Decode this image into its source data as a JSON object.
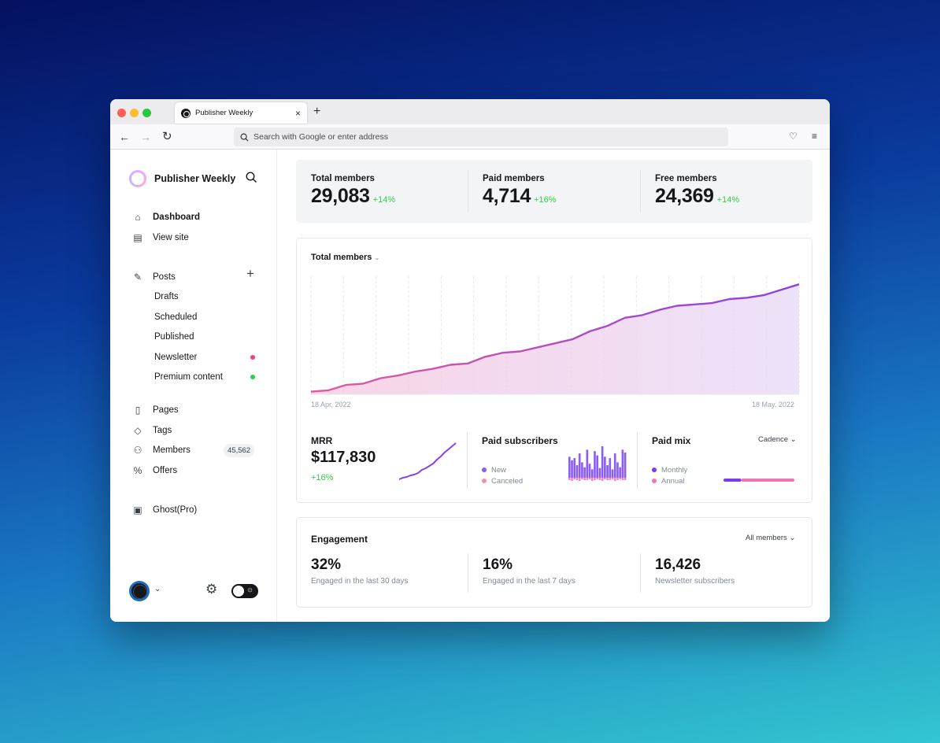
{
  "browser": {
    "tab_title": "Publisher Weekly",
    "close_glyph": "×",
    "newtab_glyph": "+",
    "address_placeholder": "Search with Google or enter address",
    "back_glyph": "←",
    "forward_glyph": "→",
    "reload_glyph": "↻",
    "pocket_glyph": "♡",
    "menu_glyph": "≡"
  },
  "sidebar": {
    "brand": "Publisher Weekly",
    "search_glyph": "⌕",
    "nav": [
      {
        "label": "Dashboard",
        "icon": "home-icon",
        "glyph": "⌂"
      },
      {
        "label": "View site",
        "icon": "layout-icon",
        "glyph": "▤"
      }
    ],
    "posts": {
      "label": "Posts",
      "icon": "edit-icon",
      "glyph": "✎",
      "add_glyph": "+"
    },
    "post_subitems": [
      {
        "label": "Drafts"
      },
      {
        "label": "Scheduled"
      },
      {
        "label": "Published"
      },
      {
        "label": "Newsletter",
        "dot_color": "#f0437a"
      },
      {
        "label": "Premium content",
        "dot_color": "#30cf43"
      }
    ],
    "manage": [
      {
        "label": "Pages",
        "icon": "page-icon",
        "glyph": "▯"
      },
      {
        "label": "Tags",
        "icon": "tag-icon",
        "glyph": "◇"
      },
      {
        "label": "Members",
        "icon": "users-icon",
        "glyph": "⚇",
        "badge": "45,562"
      },
      {
        "label": "Offers",
        "icon": "percent-icon",
        "glyph": "%"
      }
    ],
    "ghost_pro": {
      "label": "Ghost(Pro)",
      "icon": "ghost-pro-icon",
      "glyph": "▣"
    },
    "footer": {
      "caret_glyph": "⌄",
      "gear_glyph": "⚙",
      "sun_glyph": "☼"
    }
  },
  "stats": [
    {
      "label": "Total members",
      "value": "29,083",
      "delta": "+14%"
    },
    {
      "label": "Paid members",
      "value": "4,714",
      "delta": "+16%"
    },
    {
      "label": "Free members",
      "value": "24,369",
      "delta": "+14%"
    }
  ],
  "chart_data": [
    {
      "type": "area",
      "title": "Total members",
      "caret": "⌄",
      "x_start_label": "18 Apr, 2022",
      "x_end_label": "18 May, 2022",
      "values": [
        25000,
        25050,
        25250,
        25300,
        25500,
        25600,
        25750,
        25850,
        26000,
        26050,
        26300,
        26450,
        26500,
        26650,
        26800,
        26950,
        27250,
        27450,
        27750,
        27850,
        28050,
        28200,
        28250,
        28300,
        28450,
        28500,
        28600,
        28800,
        29000
      ],
      "ylim": [
        24900,
        29300
      ],
      "colors": {
        "line_start": "#e25a9a",
        "line_end": "#8b40e6"
      }
    },
    {
      "type": "line",
      "title": "MRR",
      "values": [
        2,
        4,
        5,
        7,
        8,
        10,
        14,
        16,
        19,
        22,
        27,
        31,
        36,
        40,
        44,
        48
      ],
      "color": "#8b40e6"
    },
    {
      "type": "bar",
      "title": "Paid subscribers",
      "series": [
        {
          "name": "New",
          "color": "#8b5cf6",
          "values": [
            30,
            25,
            28,
            18,
            35,
            22,
            15,
            40,
            20,
            12,
            38,
            32,
            14,
            45,
            30,
            18,
            28,
            12,
            35,
            22,
            15,
            40,
            36
          ]
        },
        {
          "name": "Canceled",
          "color": "#f38bb4",
          "values": [
            3,
            4,
            2,
            3,
            4,
            2,
            3,
            3,
            2,
            4,
            3,
            2,
            3,
            4,
            2,
            3,
            3,
            2,
            4,
            3,
            2,
            3,
            3
          ]
        }
      ]
    },
    {
      "type": "bar",
      "title": "Paid mix",
      "cadence_label": "Cadence",
      "series": [
        {
          "name": "Monthly",
          "color": "#7c3aed",
          "value": 25
        },
        {
          "name": "Annual",
          "color": "#f075b6",
          "value": 75
        }
      ]
    }
  ],
  "mrr": {
    "value": "$117,830",
    "delta": "+16%"
  },
  "engagement": {
    "title": "Engagement",
    "filter": "All members",
    "caret": "⌄",
    "stats": [
      {
        "value": "32%",
        "label": "Engaged in the last 30 days"
      },
      {
        "value": "16%",
        "label": "Engaged in the last 7 days"
      },
      {
        "value": "16,426",
        "label": "Newsletter subscribers"
      }
    ]
  }
}
